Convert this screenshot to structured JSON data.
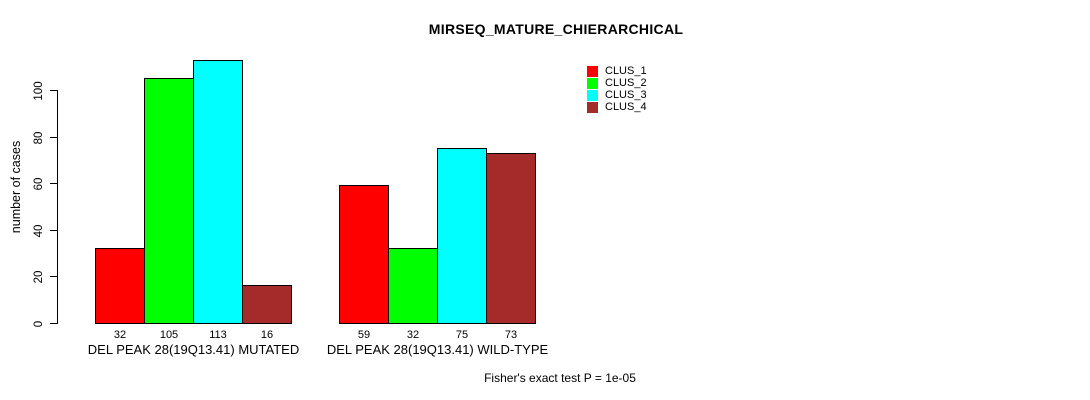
{
  "page": {
    "background": "#ffffff"
  },
  "chart_data": {
    "type": "bar",
    "title": "MIRSEQ_MATURE_CHIERARCHICAL",
    "xlabel": "",
    "ylabel": "number of cases",
    "yticks": [
      0,
      20,
      40,
      60,
      80,
      100
    ],
    "ylim": [
      0,
      113
    ],
    "grid": false,
    "legend_position": "top-right",
    "categories": [
      "DEL PEAK 28(19Q13.41) MUTATED",
      "DEL PEAK 28(19Q13.41) WILD-TYPE"
    ],
    "series": [
      {
        "name": "CLUS_1",
        "color": "#FF0000",
        "values": [
          32,
          59
        ]
      },
      {
        "name": "CLUS_2",
        "color": "#00FF00",
        "values": [
          105,
          32
        ]
      },
      {
        "name": "CLUS_3",
        "color": "#00FFFF",
        "values": [
          113,
          75
        ]
      },
      {
        "name": "CLUS_4",
        "color": "#A52A2A",
        "values": [
          16,
          73
        ]
      }
    ],
    "bar_value_labels": [
      [
        32,
        105,
        113,
        16
      ],
      [
        59,
        32,
        75,
        73
      ]
    ],
    "annotation": "Fisher's exact test P = 1e-05"
  }
}
